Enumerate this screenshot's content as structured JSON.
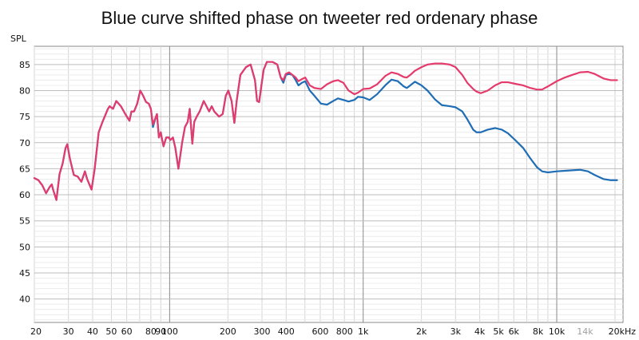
{
  "chart_data": {
    "type": "line",
    "title": "Blue curve shifted phase on tweeter red ordenary phase",
    "ylabel": "SPL",
    "xlabel": "",
    "x_scale": "log",
    "xlim": [
      20,
      22000
    ],
    "ylim": [
      35.5,
      88.5
    ],
    "grid": true,
    "y_ticks": [
      40,
      45,
      50,
      55,
      60,
      65,
      70,
      75,
      80,
      85
    ],
    "x_ticks": [
      {
        "value": 20,
        "label": "20"
      },
      {
        "value": 30,
        "label": "30"
      },
      {
        "value": 40,
        "label": "40"
      },
      {
        "value": 50,
        "label": "50"
      },
      {
        "value": 60,
        "label": "60"
      },
      {
        "value": 80,
        "label": "80"
      },
      {
        "value": 90,
        "label": "90"
      },
      {
        "value": 100,
        "label": "100"
      },
      {
        "value": 200,
        "label": "200"
      },
      {
        "value": 300,
        "label": "300"
      },
      {
        "value": 400,
        "label": "400"
      },
      {
        "value": 600,
        "label": "600"
      },
      {
        "value": 800,
        "label": "800"
      },
      {
        "value": 1000,
        "label": "1k"
      },
      {
        "value": 2000,
        "label": "2k"
      },
      {
        "value": 3000,
        "label": "3k"
      },
      {
        "value": 4000,
        "label": "4k"
      },
      {
        "value": 5000,
        "label": "5k"
      },
      {
        "value": 6000,
        "label": "6k"
      },
      {
        "value": 8000,
        "label": "8k"
      },
      {
        "value": 10000,
        "label": "10k"
      },
      {
        "value": 14000,
        "label": "14k",
        "dim": true
      },
      {
        "value": 20000,
        "label": "20kHz"
      }
    ],
    "series": [
      {
        "color": "#1f6db5",
        "points": [
          [
            20,
            63.2
          ],
          [
            21,
            62.8
          ],
          [
            22,
            61.8
          ],
          [
            23,
            60.3
          ],
          [
            24,
            61.5
          ],
          [
            24.6,
            62.0
          ],
          [
            25,
            61.0
          ],
          [
            26,
            59.0
          ],
          [
            27,
            64.0
          ],
          [
            28,
            66.0
          ],
          [
            29,
            69.0
          ],
          [
            29.6,
            69.7
          ],
          [
            30.5,
            67.0
          ],
          [
            32,
            63.8
          ],
          [
            33.5,
            63.5
          ],
          [
            35,
            62.5
          ],
          [
            36.5,
            64.5
          ],
          [
            37.5,
            63.0
          ],
          [
            39.5,
            61.0
          ],
          [
            41,
            65.0
          ],
          [
            43,
            72.0
          ],
          [
            45,
            74.0
          ],
          [
            48,
            76.5
          ],
          [
            49,
            77.0
          ],
          [
            51,
            76.5
          ],
          [
            53,
            78.0
          ],
          [
            56,
            77.0
          ],
          [
            59,
            75.5
          ],
          [
            62,
            74.2
          ],
          [
            63.5,
            76.0
          ],
          [
            65.5,
            76.0
          ],
          [
            68,
            77.5
          ],
          [
            70.5,
            80.0
          ],
          [
            73,
            79.0
          ],
          [
            75.5,
            77.8
          ],
          [
            78,
            77.5
          ],
          [
            80,
            76.5
          ],
          [
            82,
            73.0
          ],
          [
            85,
            75.0
          ],
          [
            86,
            75.5
          ],
          [
            88,
            71.0
          ],
          [
            90,
            72.0
          ],
          [
            91,
            71.0
          ],
          [
            93,
            69.3
          ],
          [
            96,
            71.0
          ],
          [
            99,
            71.0
          ],
          [
            101,
            70.5
          ],
          [
            104,
            71.0
          ],
          [
            107,
            69.0
          ],
          [
            111,
            65.0
          ],
          [
            116,
            70.0
          ],
          [
            120,
            73.0
          ],
          [
            124,
            74.0
          ],
          [
            127,
            76.5
          ],
          [
            131,
            69.8
          ],
          [
            134,
            74.0
          ],
          [
            138,
            75.0
          ],
          [
            143,
            76.0
          ],
          [
            150,
            78.0
          ],
          [
            160,
            76.0
          ],
          [
            165,
            77.0
          ],
          [
            170,
            76.0
          ],
          [
            180,
            75.0
          ],
          [
            188,
            75.5
          ],
          [
            195,
            79.0
          ],
          [
            201,
            80.0
          ],
          [
            209,
            78.0
          ],
          [
            216,
            73.8
          ],
          [
            222,
            78.0
          ],
          [
            232,
            83.0
          ],
          [
            248,
            84.5
          ],
          [
            262,
            85.0
          ],
          [
            276,
            82.0
          ],
          [
            283,
            78.0
          ],
          [
            290,
            77.8
          ],
          [
            298,
            81.0
          ],
          [
            306,
            84.0
          ],
          [
            318,
            85.5
          ],
          [
            340,
            85.5
          ],
          [
            360,
            85.0
          ],
          [
            375,
            82.5
          ],
          [
            387,
            81.5
          ],
          [
            398,
            83.0
          ],
          [
            414,
            83.2
          ],
          [
            431,
            83.0
          ],
          [
            448,
            82.0
          ],
          [
            463,
            81.0
          ],
          [
            482,
            81.5
          ],
          [
            502,
            81.8
          ],
          [
            530,
            80.0
          ],
          [
            560,
            79.0
          ],
          [
            605,
            77.5
          ],
          [
            650,
            77.3
          ],
          [
            700,
            78.0
          ],
          [
            740,
            78.5
          ],
          [
            790,
            78.2
          ],
          [
            840,
            77.9
          ],
          [
            900,
            78.2
          ],
          [
            940,
            78.8
          ],
          [
            1000,
            78.7
          ],
          [
            1080,
            78.2
          ],
          [
            1180,
            79.3
          ],
          [
            1300,
            81.0
          ],
          [
            1400,
            82.1
          ],
          [
            1510,
            81.8
          ],
          [
            1620,
            80.8
          ],
          [
            1680,
            80.5
          ],
          [
            1750,
            81.0
          ],
          [
            1850,
            81.7
          ],
          [
            2000,
            81.0
          ],
          [
            2150,
            80.0
          ],
          [
            2350,
            78.3
          ],
          [
            2550,
            77.2
          ],
          [
            2800,
            77.0
          ],
          [
            3000,
            76.8
          ],
          [
            3250,
            76.0
          ],
          [
            3450,
            74.5
          ],
          [
            3700,
            72.5
          ],
          [
            3850,
            72.0
          ],
          [
            4050,
            72.0
          ],
          [
            4400,
            72.5
          ],
          [
            4800,
            72.8
          ],
          [
            5200,
            72.5
          ],
          [
            5600,
            71.8
          ],
          [
            6100,
            70.5
          ],
          [
            6700,
            69.0
          ],
          [
            7300,
            67.0
          ],
          [
            7900,
            65.3
          ],
          [
            8400,
            64.5
          ],
          [
            9000,
            64.3
          ],
          [
            10000,
            64.5
          ],
          [
            11000,
            64.6
          ],
          [
            12000,
            64.7
          ],
          [
            13200,
            64.8
          ],
          [
            14500,
            64.5
          ],
          [
            15700,
            63.8
          ],
          [
            17500,
            63.0
          ],
          [
            19000,
            62.8
          ],
          [
            20500,
            62.8
          ]
        ]
      },
      {
        "color": "#e53a6c",
        "points": [
          [
            20,
            63.2
          ],
          [
            21,
            62.8
          ],
          [
            22,
            61.8
          ],
          [
            23,
            60.3
          ],
          [
            24,
            61.5
          ],
          [
            24.6,
            62.0
          ],
          [
            25,
            61.0
          ],
          [
            26,
            59.0
          ],
          [
            27,
            64.0
          ],
          [
            28,
            66.0
          ],
          [
            29,
            69.0
          ],
          [
            29.6,
            69.7
          ],
          [
            30.5,
            67.0
          ],
          [
            32,
            63.8
          ],
          [
            33.5,
            63.5
          ],
          [
            35,
            62.5
          ],
          [
            36.5,
            64.5
          ],
          [
            37.5,
            63.0
          ],
          [
            39.5,
            61.0
          ],
          [
            41,
            65.0
          ],
          [
            43,
            72.0
          ],
          [
            45,
            74.0
          ],
          [
            48,
            76.5
          ],
          [
            49,
            77.0
          ],
          [
            51,
            76.5
          ],
          [
            53,
            78.0
          ],
          [
            56,
            77.0
          ],
          [
            59,
            75.5
          ],
          [
            62,
            74.2
          ],
          [
            63.5,
            76.0
          ],
          [
            65.5,
            76.0
          ],
          [
            68,
            77.5
          ],
          [
            70.5,
            80.0
          ],
          [
            73,
            79.0
          ],
          [
            75.5,
            77.8
          ],
          [
            78,
            77.5
          ],
          [
            80,
            76.5
          ],
          [
            82,
            73.5
          ],
          [
            85,
            75.0
          ],
          [
            86,
            75.5
          ],
          [
            88,
            71.0
          ],
          [
            90,
            72.0
          ],
          [
            91,
            71.0
          ],
          [
            93,
            69.3
          ],
          [
            96,
            71.0
          ],
          [
            99,
            71.0
          ],
          [
            101,
            70.5
          ],
          [
            104,
            71.0
          ],
          [
            107,
            69.0
          ],
          [
            111,
            65.0
          ],
          [
            116,
            70.0
          ],
          [
            120,
            73.0
          ],
          [
            124,
            74.0
          ],
          [
            127,
            76.5
          ],
          [
            131,
            69.8
          ],
          [
            134,
            74.0
          ],
          [
            138,
            75.0
          ],
          [
            143,
            76.0
          ],
          [
            150,
            78.0
          ],
          [
            160,
            76.0
          ],
          [
            165,
            77.0
          ],
          [
            170,
            76.0
          ],
          [
            180,
            75.0
          ],
          [
            188,
            75.5
          ],
          [
            195,
            79.0
          ],
          [
            201,
            80.0
          ],
          [
            209,
            78.0
          ],
          [
            216,
            73.8
          ],
          [
            222,
            78.0
          ],
          [
            232,
            83.0
          ],
          [
            248,
            84.5
          ],
          [
            262,
            85.0
          ],
          [
            276,
            82.0
          ],
          [
            283,
            78.0
          ],
          [
            290,
            77.8
          ],
          [
            298,
            81.0
          ],
          [
            306,
            84.0
          ],
          [
            318,
            85.5
          ],
          [
            340,
            85.5
          ],
          [
            360,
            85.0
          ],
          [
            375,
            82.5
          ],
          [
            387,
            82.0
          ],
          [
            398,
            83.2
          ],
          [
            414,
            83.5
          ],
          [
            431,
            83.0
          ],
          [
            448,
            82.5
          ],
          [
            463,
            81.8
          ],
          [
            482,
            82.2
          ],
          [
            502,
            82.5
          ],
          [
            530,
            81.0
          ],
          [
            560,
            80.5
          ],
          [
            605,
            80.3
          ],
          [
            650,
            81.2
          ],
          [
            700,
            81.8
          ],
          [
            740,
            82.0
          ],
          [
            790,
            81.5
          ],
          [
            840,
            80.0
          ],
          [
            900,
            79.3
          ],
          [
            940,
            79.6
          ],
          [
            1000,
            80.3
          ],
          [
            1080,
            80.4
          ],
          [
            1180,
            81.2
          ],
          [
            1300,
            82.8
          ],
          [
            1400,
            83.5
          ],
          [
            1510,
            83.2
          ],
          [
            1620,
            82.6
          ],
          [
            1680,
            82.5
          ],
          [
            1750,
            83.0
          ],
          [
            1850,
            83.8
          ],
          [
            2000,
            84.5
          ],
          [
            2150,
            85.0
          ],
          [
            2350,
            85.2
          ],
          [
            2550,
            85.2
          ],
          [
            2800,
            85.0
          ],
          [
            3000,
            84.5
          ],
          [
            3250,
            83.0
          ],
          [
            3450,
            81.5
          ],
          [
            3700,
            80.3
          ],
          [
            3850,
            79.8
          ],
          [
            4050,
            79.5
          ],
          [
            4400,
            80.0
          ],
          [
            4800,
            81.0
          ],
          [
            5200,
            81.6
          ],
          [
            5600,
            81.6
          ],
          [
            6100,
            81.3
          ],
          [
            6700,
            81.0
          ],
          [
            7300,
            80.5
          ],
          [
            7900,
            80.2
          ],
          [
            8400,
            80.2
          ],
          [
            9000,
            80.8
          ],
          [
            10000,
            81.8
          ],
          [
            11000,
            82.5
          ],
          [
            12000,
            83.0
          ],
          [
            13200,
            83.5
          ],
          [
            14500,
            83.6
          ],
          [
            15700,
            83.2
          ],
          [
            17500,
            82.3
          ],
          [
            19000,
            82.0
          ],
          [
            20500,
            82.0
          ]
        ]
      }
    ]
  }
}
